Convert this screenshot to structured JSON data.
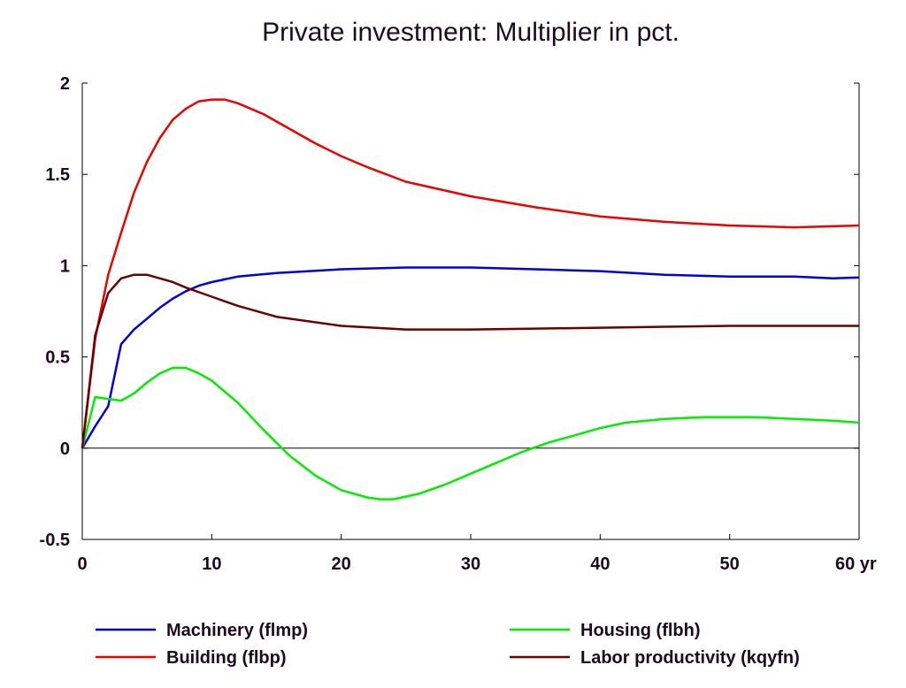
{
  "chart_data": {
    "type": "line",
    "title": "Private investment: Multiplier in pct.",
    "xlabel": "",
    "ylabel": "",
    "x_unit_label": "yr",
    "xlim": [
      0,
      60
    ],
    "ylim": [
      -0.5,
      2
    ],
    "x_ticks": [
      0,
      10,
      20,
      30,
      40,
      50,
      60
    ],
    "y_ticks": [
      -0.5,
      0,
      0.5,
      1,
      1.5,
      2
    ],
    "y_tick_labels": [
      "-0.5",
      "0",
      "0.5",
      "1",
      "1.5",
      "2"
    ],
    "grid": false,
    "zero_line": true,
    "legend_position": "bottom",
    "series": [
      {
        "name": "Machinery (flmp)",
        "color": "#0000dd",
        "points": [
          [
            0,
            0
          ],
          [
            1,
            0.12
          ],
          [
            2,
            0.23
          ],
          [
            3,
            0.57
          ],
          [
            4,
            0.65
          ],
          [
            5,
            0.71
          ],
          [
            6,
            0.77
          ],
          [
            7,
            0.82
          ],
          [
            8,
            0.86
          ],
          [
            9,
            0.89
          ],
          [
            10,
            0.91
          ],
          [
            12,
            0.94
          ],
          [
            15,
            0.96
          ],
          [
            20,
            0.98
          ],
          [
            25,
            0.99
          ],
          [
            30,
            0.99
          ],
          [
            35,
            0.98
          ],
          [
            40,
            0.97
          ],
          [
            45,
            0.95
          ],
          [
            50,
            0.94
          ],
          [
            55,
            0.94
          ],
          [
            58,
            0.93
          ],
          [
            60,
            0.935
          ]
        ]
      },
      {
        "name": "Building (flbp)",
        "color": "#ee0000",
        "points": [
          [
            0,
            0
          ],
          [
            1,
            0.6
          ],
          [
            2,
            0.95
          ],
          [
            3,
            1.18
          ],
          [
            4,
            1.4
          ],
          [
            5,
            1.57
          ],
          [
            6,
            1.7
          ],
          [
            7,
            1.8
          ],
          [
            8,
            1.86
          ],
          [
            9,
            1.9
          ],
          [
            10,
            1.91
          ],
          [
            11,
            1.91
          ],
          [
            12,
            1.89
          ],
          [
            14,
            1.83
          ],
          [
            16,
            1.75
          ],
          [
            18,
            1.67
          ],
          [
            20,
            1.6
          ],
          [
            22,
            1.54
          ],
          [
            25,
            1.46
          ],
          [
            30,
            1.38
          ],
          [
            35,
            1.32
          ],
          [
            40,
            1.27
          ],
          [
            45,
            1.24
          ],
          [
            50,
            1.22
          ],
          [
            55,
            1.21
          ],
          [
            60,
            1.22
          ]
        ]
      },
      {
        "name": "Housing (flbh)",
        "color": "#00ee00",
        "points": [
          [
            0,
            0
          ],
          [
            1,
            0.28
          ],
          [
            2,
            0.27
          ],
          [
            3,
            0.26
          ],
          [
            4,
            0.3
          ],
          [
            5,
            0.36
          ],
          [
            6,
            0.41
          ],
          [
            7,
            0.44
          ],
          [
            8,
            0.44
          ],
          [
            9,
            0.41
          ],
          [
            10,
            0.37
          ],
          [
            12,
            0.25
          ],
          [
            14,
            0.1
          ],
          [
            16,
            -0.04
          ],
          [
            18,
            -0.15
          ],
          [
            20,
            -0.23
          ],
          [
            22,
            -0.27
          ],
          [
            23,
            -0.28
          ],
          [
            24,
            -0.28
          ],
          [
            26,
            -0.25
          ],
          [
            28,
            -0.2
          ],
          [
            30,
            -0.14
          ],
          [
            32,
            -0.08
          ],
          [
            34,
            -0.02
          ],
          [
            36,
            0.03
          ],
          [
            38,
            0.07
          ],
          [
            40,
            0.11
          ],
          [
            42,
            0.14
          ],
          [
            45,
            0.16
          ],
          [
            48,
            0.17
          ],
          [
            50,
            0.17
          ],
          [
            52,
            0.17
          ],
          [
            55,
            0.16
          ],
          [
            58,
            0.15
          ],
          [
            60,
            0.14
          ]
        ]
      },
      {
        "name": "Labor productivity (kqyfn)",
        "color": "#6b0000",
        "points": [
          [
            0,
            0
          ],
          [
            1,
            0.62
          ],
          [
            2,
            0.85
          ],
          [
            3,
            0.93
          ],
          [
            4,
            0.95
          ],
          [
            5,
            0.95
          ],
          [
            6,
            0.93
          ],
          [
            7,
            0.91
          ],
          [
            8,
            0.88
          ],
          [
            10,
            0.83
          ],
          [
            12,
            0.78
          ],
          [
            15,
            0.72
          ],
          [
            20,
            0.67
          ],
          [
            25,
            0.65
          ],
          [
            30,
            0.65
          ],
          [
            35,
            0.655
          ],
          [
            40,
            0.66
          ],
          [
            45,
            0.665
          ],
          [
            50,
            0.67
          ],
          [
            55,
            0.67
          ],
          [
            60,
            0.67
          ]
        ]
      }
    ]
  }
}
